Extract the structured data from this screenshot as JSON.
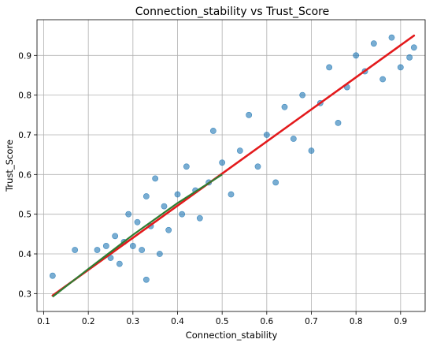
{
  "chart_data": {
    "type": "scatter",
    "title": "Connection_stability vs Trust_Score",
    "xlabel": "Connection_stability",
    "ylabel": "Trust_Score",
    "xlim": [
      0.085,
      0.955
    ],
    "ylim": [
      0.255,
      0.99
    ],
    "xticks": [
      "0.1",
      "0.2",
      "0.3",
      "0.4",
      "0.5",
      "0.6",
      "0.7",
      "0.8",
      "0.9"
    ],
    "yticks": [
      "0.3",
      "0.4",
      "0.5",
      "0.6",
      "0.7",
      "0.8",
      "0.9"
    ],
    "grid": true,
    "colors": {
      "points": "#1f77b4",
      "fit_line": "#e31a1c",
      "smooth_line": "#2e7d32",
      "outlier_points": "#9b59d0"
    },
    "fit_line": {
      "x": [
        0.12,
        0.93
      ],
      "y": [
        0.295,
        0.95
      ]
    },
    "smooth_line": {
      "x": [
        0.12,
        0.2,
        0.3,
        0.4,
        0.5
      ],
      "y": [
        0.292,
        0.362,
        0.448,
        0.528,
        0.6
      ]
    },
    "series": [
      {
        "values": [
          {
            "x": 0.12,
            "y": 0.345
          },
          {
            "x": 0.17,
            "y": 0.41
          },
          {
            "x": 0.22,
            "y": 0.41
          },
          {
            "x": 0.24,
            "y": 0.42
          },
          {
            "x": 0.25,
            "y": 0.39
          },
          {
            "x": 0.26,
            "y": 0.445
          },
          {
            "x": 0.27,
            "y": 0.375
          },
          {
            "x": 0.28,
            "y": 0.43
          },
          {
            "x": 0.29,
            "y": 0.5
          },
          {
            "x": 0.3,
            "y": 0.42
          },
          {
            "x": 0.31,
            "y": 0.48
          },
          {
            "x": 0.32,
            "y": 0.41
          },
          {
            "x": 0.33,
            "y": 0.335
          },
          {
            "x": 0.33,
            "y": 0.545
          },
          {
            "x": 0.34,
            "y": 0.47
          },
          {
            "x": 0.35,
            "y": 0.59
          },
          {
            "x": 0.36,
            "y": 0.4
          },
          {
            "x": 0.37,
            "y": 0.52
          },
          {
            "x": 0.38,
            "y": 0.46
          },
          {
            "x": 0.4,
            "y": 0.55
          },
          {
            "x": 0.41,
            "y": 0.5
          },
          {
            "x": 0.42,
            "y": 0.62
          },
          {
            "x": 0.44,
            "y": 0.56
          },
          {
            "x": 0.45,
            "y": 0.49
          },
          {
            "x": 0.47,
            "y": 0.58
          },
          {
            "x": 0.48,
            "y": 0.71
          },
          {
            "x": 0.5,
            "y": 0.63
          },
          {
            "x": 0.52,
            "y": 0.55
          },
          {
            "x": 0.54,
            "y": 0.66
          },
          {
            "x": 0.56,
            "y": 0.75
          },
          {
            "x": 0.58,
            "y": 0.62
          },
          {
            "x": 0.6,
            "y": 0.7
          },
          {
            "x": 0.62,
            "y": 0.58
          },
          {
            "x": 0.64,
            "y": 0.77
          },
          {
            "x": 0.66,
            "y": 0.69
          },
          {
            "x": 0.68,
            "y": 0.8
          },
          {
            "x": 0.7,
            "y": 0.66
          },
          {
            "x": 0.72,
            "y": 0.78
          },
          {
            "x": 0.74,
            "y": 0.87
          },
          {
            "x": 0.76,
            "y": 0.73
          },
          {
            "x": 0.78,
            "y": 0.82
          },
          {
            "x": 0.8,
            "y": 0.9
          },
          {
            "x": 0.82,
            "y": 0.86
          },
          {
            "x": 0.84,
            "y": 0.93
          },
          {
            "x": 0.86,
            "y": 0.84
          },
          {
            "x": 0.88,
            "y": 0.945
          },
          {
            "x": 0.9,
            "y": 0.87
          },
          {
            "x": 0.92,
            "y": 0.895
          },
          {
            "x": 0.93,
            "y": 0.92
          }
        ]
      }
    ]
  }
}
